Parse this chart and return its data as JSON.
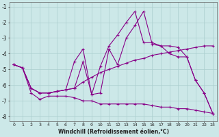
{
  "xlabel": "Windchill (Refroidissement éolien,°C)",
  "background_color": "#cce8e8",
  "line_color": "#880088",
  "xlim": [
    -0.5,
    23.5
  ],
  "ylim": [
    -8.3,
    -0.7
  ],
  "xticks": [
    0,
    1,
    2,
    3,
    4,
    5,
    6,
    7,
    8,
    9,
    10,
    11,
    12,
    13,
    14,
    15,
    16,
    17,
    18,
    19,
    20,
    21,
    22,
    23
  ],
  "yticks": [
    -8,
    -7,
    -6,
    -5,
    -4,
    -3,
    -2,
    -1
  ],
  "series": [
    {
      "x": [
        0,
        1,
        2,
        3,
        4,
        5,
        6,
        7,
        8,
        9,
        10,
        11,
        12,
        13,
        14,
        15,
        16,
        17,
        18,
        19,
        20,
        21,
        22,
        23
      ],
      "y": [
        -4.7,
        -4.9,
        -6.5,
        -6.9,
        -6.7,
        -6.7,
        -6.7,
        -6.8,
        -7.0,
        -7.0,
        -7.2,
        -7.2,
        -7.2,
        -7.2,
        -7.2,
        -7.2,
        -7.3,
        -7.4,
        -7.4,
        -7.5,
        -7.5,
        -7.6,
        -7.7,
        -7.8
      ]
    },
    {
      "x": [
        0,
        1,
        2,
        3,
        4,
        5,
        6,
        7,
        8,
        9,
        10,
        11,
        12,
        13,
        14,
        15,
        16,
        17,
        18,
        19,
        20,
        21,
        22,
        23
      ],
      "y": [
        -4.7,
        -4.9,
        -6.2,
        -6.5,
        -6.5,
        -6.4,
        -6.3,
        -6.2,
        -5.8,
        -5.5,
        -5.2,
        -5.0,
        -4.8,
        -4.6,
        -4.4,
        -4.3,
        -4.1,
        -4.0,
        -3.9,
        -3.8,
        -3.7,
        -3.6,
        -3.5,
        -3.5
      ]
    },
    {
      "x": [
        0,
        1,
        2,
        3,
        4,
        5,
        6,
        7,
        8,
        9,
        10,
        11,
        12,
        13,
        14,
        15,
        16,
        17,
        18,
        19,
        20,
        21,
        22,
        23
      ],
      "y": [
        -4.7,
        -4.9,
        -6.2,
        -6.5,
        -6.5,
        -6.4,
        -6.3,
        -6.2,
        -4.5,
        -6.6,
        -6.5,
        -3.7,
        -4.7,
        -3.0,
        -2.2,
        -1.3,
        -3.4,
        -3.5,
        -4.0,
        -4.2,
        -4.2,
        -5.7,
        -6.5,
        -7.8
      ]
    },
    {
      "x": [
        0,
        1,
        2,
        3,
        4,
        5,
        6,
        7,
        8,
        9,
        10,
        11,
        12,
        13,
        14,
        15,
        16,
        17,
        18,
        19,
        20,
        21,
        22,
        23
      ],
      "y": [
        -4.7,
        -4.9,
        -6.2,
        -6.5,
        -6.5,
        -6.4,
        -6.3,
        -4.5,
        -3.7,
        -6.6,
        -4.8,
        -3.5,
        -2.8,
        -2.0,
        -1.3,
        -3.3,
        -3.3,
        -3.5,
        -3.5,
        -3.6,
        -4.2,
        -5.7,
        -6.5,
        -7.8
      ]
    }
  ],
  "grid_color": "#aacece",
  "marker": "+"
}
